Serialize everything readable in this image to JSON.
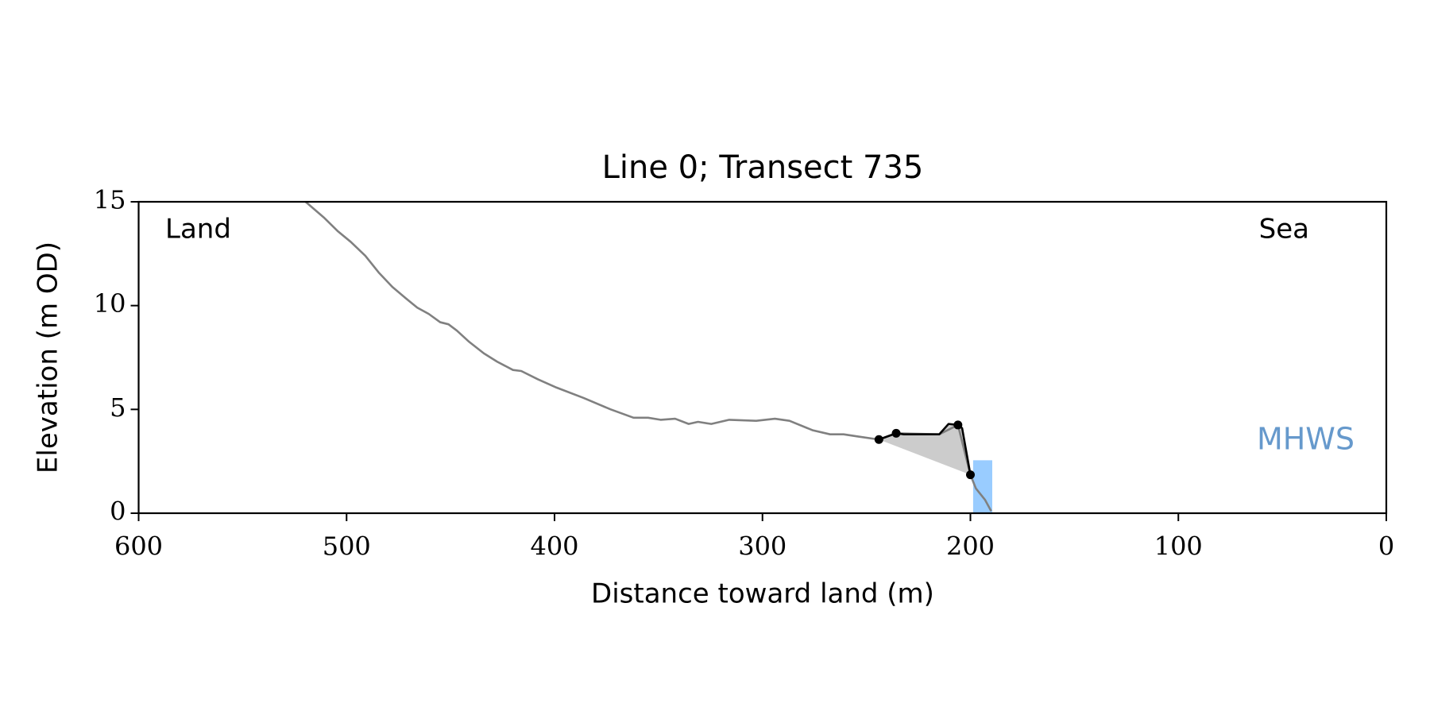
{
  "chart_data": {
    "type": "line",
    "title": "Line 0; Transect 735",
    "xlabel": "Distance toward land (m)",
    "ylabel": "Elevation (m OD)",
    "xlim": [
      600,
      0
    ],
    "ylim": [
      0,
      15
    ],
    "xticks": [
      600,
      500,
      400,
      300,
      200,
      100,
      0
    ],
    "yticks": [
      0,
      5,
      10,
      15
    ],
    "annotations": {
      "land": "Land",
      "sea": "Sea"
    },
    "series": [
      {
        "color": "#808080",
        "x": [
          519.7,
          511,
          504.4,
          498,
          491,
          484.6,
          478,
          471.5,
          466,
          460.5,
          455,
          451,
          447,
          441,
          434,
          427.6,
          420,
          416,
          408,
          399,
          386,
          373,
          362,
          355,
          349,
          342,
          335.5,
          331,
          324.6,
          316,
          303,
          294,
          287,
          276,
          267.5,
          261,
          254.4,
          244,
          235.7,
          215,
          206,
          200,
          197.4,
          193,
          190
        ],
        "values": [
          15,
          14.25,
          13.6,
          13.07,
          12.4,
          11.6,
          10.9,
          10.35,
          9.9,
          9.6,
          9.2,
          9.1,
          8.8,
          8.25,
          7.7,
          7.3,
          6.9,
          6.85,
          6.45,
          6.05,
          5.55,
          5.0,
          4.6,
          4.6,
          4.5,
          4.55,
          4.3,
          4.4,
          4.3,
          4.5,
          4.45,
          4.55,
          4.45,
          4.0,
          3.8,
          3.8,
          3.7,
          3.55,
          3.85,
          3.8,
          4.25,
          1.85,
          1.2,
          0.65,
          0.1
        ]
      },
      {
        "color": "#000000",
        "x": [
          244,
          235.7,
          232,
          215,
          210.5,
          206,
          204,
          200
        ],
        "values": [
          3.55,
          3.85,
          3.8,
          3.8,
          4.3,
          4.25,
          4.1,
          1.85
        ],
        "fill_color": "#cccccc"
      },
      {
        "color": "#000000",
        "marker": true,
        "x": [
          244,
          235.7,
          206,
          200
        ],
        "values": [
          3.55,
          3.85,
          4.25,
          1.85
        ]
      }
    ],
    "mhws": {
      "label": "MHWS",
      "x": [
        198.7,
        189.5
      ],
      "top": 2.55,
      "color": "#99ccff",
      "label_color": "#6699cc"
    }
  }
}
